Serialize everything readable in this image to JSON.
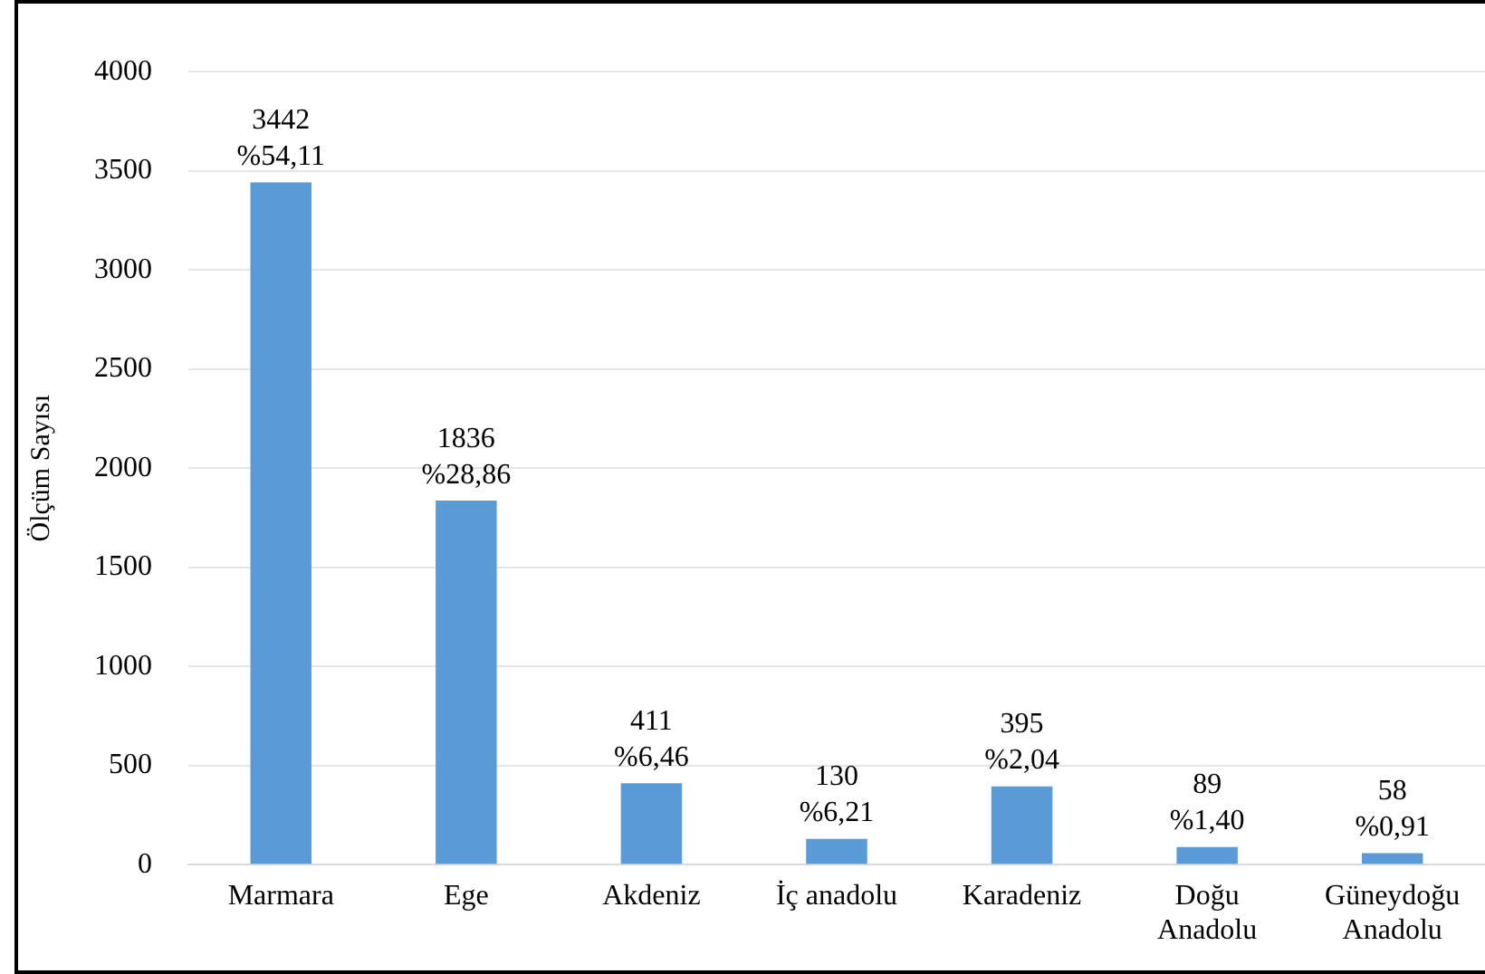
{
  "chart_data": {
    "type": "bar",
    "ylabel": "Ölçüm Sayısı",
    "categories": [
      "Marmara",
      "Ege",
      "Akdeniz",
      "İç anadolu",
      "Karadeniz",
      "Doğu\nAnadolu",
      "Güneydoğu\nAnadolu"
    ],
    "values": [
      3442,
      1836,
      411,
      130,
      395,
      89,
      58
    ],
    "value_labels": [
      "3442\n%54,11",
      "1836\n%28,86",
      "411\n%6,46",
      "130\n%6,21",
      "395\n%2,04",
      "89\n%1,40",
      "58\n%0,91"
    ],
    "color": "#5b9bd5",
    "ylim": [
      0,
      4000
    ],
    "yticks": [
      0,
      500,
      1000,
      1500,
      2000,
      2500,
      3000,
      3500,
      4000
    ],
    "grid": "y",
    "legend": false
  }
}
